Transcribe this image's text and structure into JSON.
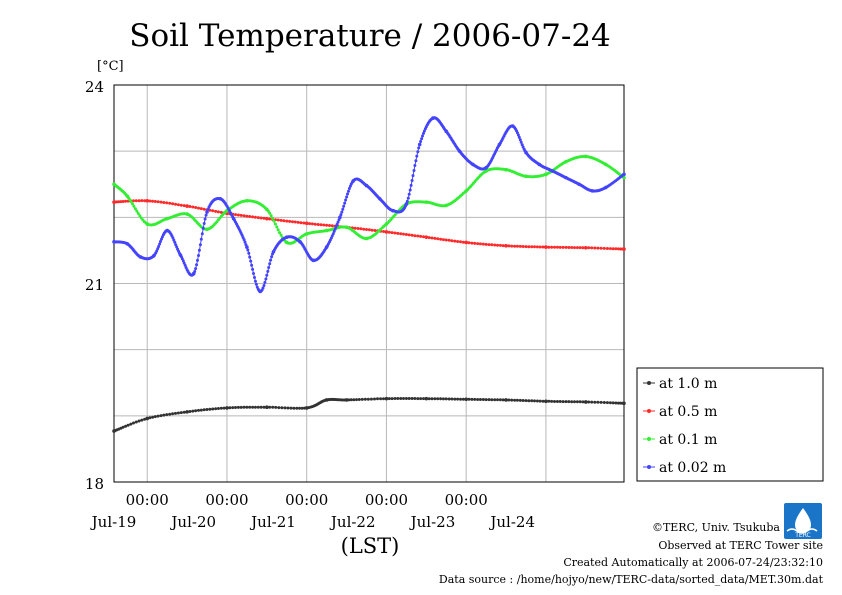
{
  "chart_data": {
    "type": "line",
    "title": "Soil Temperature / 2006-07-24",
    "ylabel": "[°C]",
    "xlabel": "(LST)",
    "ylim": [
      18,
      24
    ],
    "y_ticks": [
      "18",
      "21",
      "24"
    ],
    "x_range_days": [
      "2006-07-18T14:00",
      "2006-07-24T23:30"
    ],
    "x_time_ticks": [
      "00:00",
      "00:00",
      "00:00",
      "00:00",
      "00:00"
    ],
    "x_date_labels": [
      "Jul-19",
      "Jul-20",
      "Jul-21",
      "Jul-22",
      "Jul-23",
      "Jul-24"
    ],
    "grid": true,
    "legend_position": "right",
    "series": [
      {
        "name": "at 1.0 m",
        "color": "#333333",
        "x": [
          "2006-07-18T14:00",
          "2006-07-19T00:00",
          "2006-07-19T12:00",
          "2006-07-20T00:00",
          "2006-07-20T12:00",
          "2006-07-21T00:00",
          "2006-07-21T06:00",
          "2006-07-21T12:00",
          "2006-07-22T00:00",
          "2006-07-22T12:00",
          "2006-07-23T00:00",
          "2006-07-23T12:00",
          "2006-07-24T00:00",
          "2006-07-24T12:00",
          "2006-07-24T23:30"
        ],
        "values": [
          18.77,
          18.96,
          19.06,
          19.12,
          19.13,
          19.12,
          19.24,
          19.24,
          19.26,
          19.26,
          19.25,
          19.24,
          19.22,
          19.21,
          19.19
        ]
      },
      {
        "name": "at 0.5 m",
        "color": "#ff2a2a",
        "x": [
          "2006-07-18T14:00",
          "2006-07-19T00:00",
          "2006-07-19T12:00",
          "2006-07-20T00:00",
          "2006-07-20T12:00",
          "2006-07-21T00:00",
          "2006-07-21T12:00",
          "2006-07-22T00:00",
          "2006-07-22T12:00",
          "2006-07-23T00:00",
          "2006-07-23T12:00",
          "2006-07-24T00:00",
          "2006-07-24T12:00",
          "2006-07-24T23:30"
        ],
        "values": [
          22.23,
          22.25,
          22.17,
          22.06,
          21.98,
          21.91,
          21.85,
          21.78,
          21.7,
          21.62,
          21.57,
          21.55,
          21.54,
          21.52
        ]
      },
      {
        "name": "at 0.1 m",
        "color": "#33ee33",
        "x": [
          "2006-07-18T14:00",
          "2006-07-18T18:00",
          "2006-07-19T00:00",
          "2006-07-19T06:00",
          "2006-07-19T12:00",
          "2006-07-19T18:00",
          "2006-07-20T00:00",
          "2006-07-20T06:00",
          "2006-07-20T12:00",
          "2006-07-20T18:00",
          "2006-07-21T00:00",
          "2006-07-21T06:00",
          "2006-07-21T12:00",
          "2006-07-21T18:00",
          "2006-07-22T00:00",
          "2006-07-22T06:00",
          "2006-07-22T12:00",
          "2006-07-22T18:00",
          "2006-07-23T00:00",
          "2006-07-23T06:00",
          "2006-07-23T12:00",
          "2006-07-23T18:00",
          "2006-07-24T00:00",
          "2006-07-24T06:00",
          "2006-07-24T12:00",
          "2006-07-24T18:00",
          "2006-07-24T23:30"
        ],
        "values": [
          22.5,
          22.32,
          21.9,
          21.98,
          22.05,
          21.82,
          22.1,
          22.25,
          22.12,
          21.62,
          21.75,
          21.8,
          21.85,
          21.68,
          21.9,
          22.2,
          22.23,
          22.18,
          22.4,
          22.7,
          22.72,
          22.62,
          22.65,
          22.84,
          22.92,
          22.8,
          22.6
        ]
      },
      {
        "name": "at 0.02 m",
        "color": "#4444ff",
        "x": [
          "2006-07-18T14:00",
          "2006-07-18T18:00",
          "2006-07-18T22:00",
          "2006-07-19T02:00",
          "2006-07-19T06:00",
          "2006-07-19T10:00",
          "2006-07-19T14:00",
          "2006-07-19T18:00",
          "2006-07-19T22:00",
          "2006-07-20T02:00",
          "2006-07-20T06:00",
          "2006-07-20T10:00",
          "2006-07-20T14:00",
          "2006-07-20T18:00",
          "2006-07-20T22:00",
          "2006-07-21T02:00",
          "2006-07-21T06:00",
          "2006-07-21T10:00",
          "2006-07-21T14:00",
          "2006-07-21T18:00",
          "2006-07-21T22:00",
          "2006-07-22T02:00",
          "2006-07-22T06:00",
          "2006-07-22T10:00",
          "2006-07-22T14:00",
          "2006-07-22T18:00",
          "2006-07-22T22:00",
          "2006-07-23T02:00",
          "2006-07-23T06:00",
          "2006-07-23T10:00",
          "2006-07-23T14:00",
          "2006-07-23T18:00",
          "2006-07-23T22:00",
          "2006-07-24T02:00",
          "2006-07-24T06:00",
          "2006-07-24T10:00",
          "2006-07-24T14:00",
          "2006-07-24T18:00",
          "2006-07-24T23:30"
        ],
        "values": [
          21.63,
          21.6,
          21.4,
          21.42,
          21.8,
          21.43,
          21.15,
          22.08,
          22.28,
          21.98,
          21.55,
          20.88,
          21.48,
          21.7,
          21.63,
          21.35,
          21.55,
          22.0,
          22.55,
          22.48,
          22.28,
          22.1,
          22.2,
          23.1,
          23.5,
          23.3,
          23.0,
          22.8,
          22.75,
          23.1,
          23.38,
          22.98,
          22.8,
          22.7,
          22.6,
          22.5,
          22.4,
          22.45,
          22.65
        ]
      }
    ]
  },
  "footer": {
    "copyright": "©TERC, Univ. Tsukuba",
    "observed": "Observed at TERC Tower site",
    "created": "Created Automatically at 2006-07-24/23:32:10",
    "source": "Data source : /home/hojyo/new/TERC-data/sorted_data/MET.30m.dat",
    "logo_text": "TERC"
  }
}
